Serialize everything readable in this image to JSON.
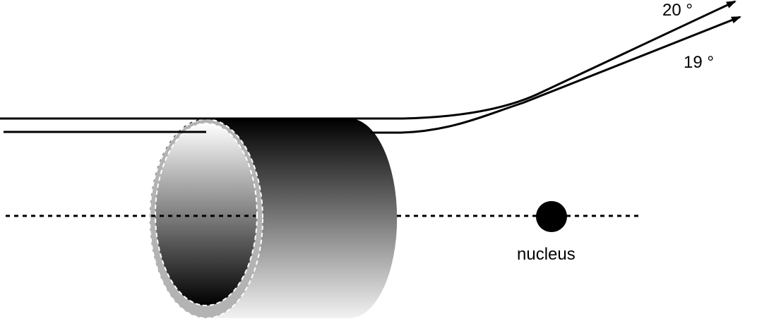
{
  "labels": {
    "angle_upper": "20 °",
    "angle_lower": "19 °",
    "nucleus": "nucleus"
  },
  "colors": {
    "stroke": "#000000",
    "ring": "#b3b3b3",
    "background": "#ffffff"
  }
}
